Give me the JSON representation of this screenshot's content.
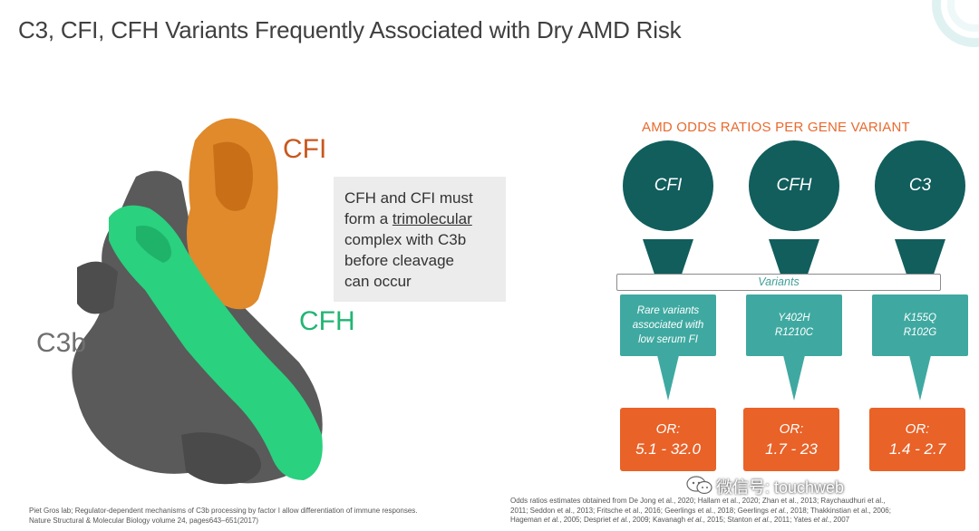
{
  "slide": {
    "title": "C3, CFI, CFH Variants Frequently Associated with Dry AMD Risk"
  },
  "structure": {
    "labels": {
      "cfi": "CFI",
      "cfh": "CFH",
      "c3b": "C3b"
    },
    "colors": {
      "cfi": "#e08a2c",
      "cfh": "#2ad17f",
      "c3b": "#5a5a5a"
    },
    "callout_lines": [
      "CFH and CFI must",
      "form a ",
      "trimolecular",
      "complex with C3b",
      "before cleavage",
      "can occur"
    ],
    "reference": [
      "Piet Gros lab; Regulator-dependent mechanisms of C3b processing by factor I allow differentiation of immune responses.",
      "Nature Structural & Molecular Biology volume 24, pages643–651(2017)"
    ]
  },
  "odds_panel": {
    "title": "AMD ODDS RATIOS PER GENE VARIANT",
    "variants_label": "Variants",
    "genes": [
      {
        "name": "CFI",
        "variants": [
          "Rare variants",
          "associated with",
          "low serum FI"
        ],
        "or_label": "OR:",
        "or_value": "5.1 - 32.0"
      },
      {
        "name": "CFH",
        "variants": [
          "Y402H",
          "R1210C"
        ],
        "or_label": "OR:",
        "or_value": "1.7 - 23"
      },
      {
        "name": "C3",
        "variants": [
          "K155Q",
          "R102G"
        ],
        "or_label": "OR:",
        "or_value": "1.4 - 2.7"
      }
    ],
    "colors": {
      "circle": "#115e5d",
      "variant_box": "#3fa9a1",
      "or_box": "#e96228",
      "title": "#e86a2e"
    },
    "reference_parts": [
      [
        "Odds ratios estimates obtained from De Jong et al., 2020; Hallam et al., 2020; Zhan et al., 2013; Raychaudhuri et al.,"
      ],
      [
        "2011; Seddon et al., 2013; Fritsche et al., 2016; Geerlings et al., 2018; Geerlings ",
        "et al.",
        ", 2018; Thakkinstian et al., 2006;"
      ],
      [
        "Hageman ",
        "et al.",
        ", 2005; Despriet ",
        "et al.",
        ", 2009; Kavanagh ",
        "et al.",
        ", 2015; Stanton ",
        "et al.",
        ", 2011;  Yates ",
        "et al.",
        ", 2007"
      ]
    ]
  },
  "watermark": {
    "text": "微信号: touchweb"
  }
}
